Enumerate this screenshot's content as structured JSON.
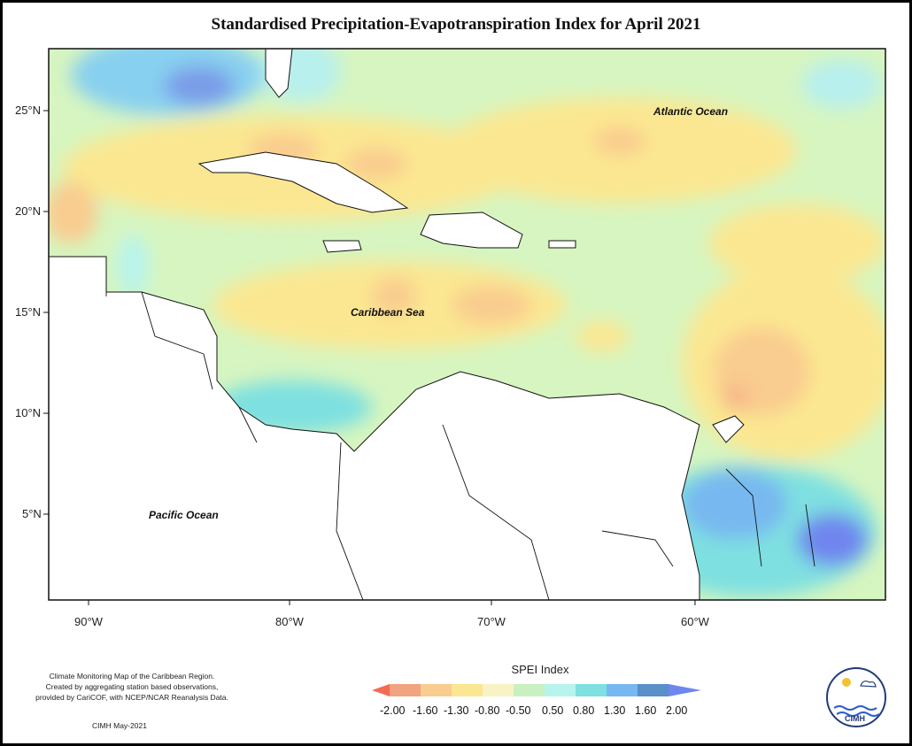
{
  "title": "Standardised Precipitation-Evapotranspiration Index for April 2021",
  "map": {
    "lat_labels": [
      "25°N",
      "20°N",
      "15°N",
      "10°N",
      "5°N"
    ],
    "lon_labels": [
      "90°W",
      "80°W",
      "70°W",
      "60°W"
    ],
    "place_labels": {
      "atlantic": "Atlantic Ocean",
      "caribbean": "Caribbean Sea",
      "pacific": "Pacific Ocean"
    }
  },
  "legend": {
    "title": "SPEI Index",
    "ticks": [
      "-2.00",
      "-1.60",
      "-1.30",
      "-0.80",
      "-0.50",
      "0.50",
      "0.80",
      "1.30",
      "1.60",
      "2.00"
    ],
    "colors": [
      "#f26b52",
      "#f2a37f",
      "#f9cc8f",
      "#fbe791",
      "#f8f3c4",
      "#c9f0c0",
      "#b8f4ee",
      "#7ee0e0",
      "#78b8f0",
      "#5b8fc8",
      "#6f86ee"
    ]
  },
  "credits": {
    "lines": [
      "Climate Monitoring Map of the Caribbean Region.",
      "Created by aggregating station based observations,",
      "provided by CariCOF, with NCEP/NCAR Reanalysis Data."
    ],
    "date": "CIMH May-2021"
  },
  "logo": {
    "name": "CIMH"
  }
}
